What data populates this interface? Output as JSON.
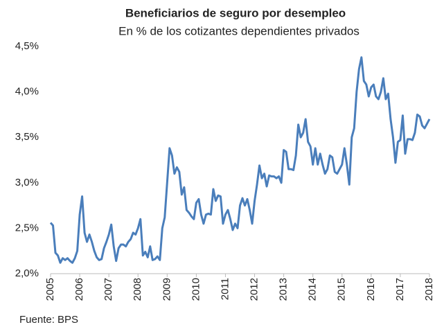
{
  "chart_data": {
    "type": "line",
    "title": "Beneficiarios de seguro por desempleo",
    "subtitle": "En % de los cotizantes dependientes privados",
    "source": "Fuente: BPS",
    "categories": [
      "2005",
      null,
      null,
      null,
      null,
      null,
      null,
      null,
      null,
      null,
      null,
      null,
      "2006",
      null,
      null,
      null,
      null,
      null,
      null,
      null,
      null,
      null,
      null,
      null,
      "2007",
      null,
      null,
      null,
      null,
      null,
      null,
      null,
      null,
      null,
      null,
      null,
      "2008",
      null,
      null,
      null,
      null,
      null,
      null,
      null,
      null,
      null,
      null,
      null,
      "2009",
      null,
      null,
      null,
      null,
      null,
      null,
      null,
      null,
      null,
      null,
      null,
      "2010",
      null,
      null,
      null,
      null,
      null,
      null,
      null,
      null,
      null,
      null,
      null,
      "2011",
      null,
      null,
      null,
      null,
      null,
      null,
      null,
      null,
      null,
      null,
      null,
      "2012",
      null,
      null,
      null,
      null,
      null,
      null,
      null,
      null,
      null,
      null,
      null,
      "2013",
      null,
      null,
      null,
      null,
      null,
      null,
      null,
      null,
      null,
      null,
      null,
      "2014",
      null,
      null,
      null,
      null,
      null,
      null,
      null,
      null,
      null,
      null,
      null,
      "2015",
      null,
      null,
      null,
      null,
      null,
      null,
      null,
      null,
      null,
      null,
      null,
      "2016",
      null,
      null,
      null,
      null,
      null,
      null,
      null,
      null,
      null,
      null,
      null,
      "2017",
      null,
      null,
      null,
      null,
      null,
      null,
      null,
      null,
      null,
      null,
      null,
      "2018"
    ],
    "values": [
      2.56,
      2.53,
      2.23,
      2.2,
      2.12,
      2.17,
      2.15,
      2.17,
      2.14,
      2.12,
      2.17,
      2.25,
      2.65,
      2.85,
      2.45,
      2.35,
      2.43,
      2.35,
      2.25,
      2.18,
      2.15,
      2.16,
      2.28,
      2.35,
      2.43,
      2.54,
      2.3,
      2.14,
      2.28,
      2.32,
      2.32,
      2.3,
      2.35,
      2.38,
      2.45,
      2.43,
      2.5,
      2.6,
      2.2,
      2.24,
      2.18,
      2.3,
      2.15,
      2.16,
      2.19,
      2.15,
      2.5,
      2.62,
      3.0,
      3.38,
      3.3,
      3.1,
      3.17,
      3.12,
      2.87,
      2.95,
      2.7,
      2.67,
      2.63,
      2.6,
      2.78,
      2.82,
      2.65,
      2.55,
      2.65,
      2.66,
      2.65,
      2.93,
      2.8,
      2.86,
      2.85,
      2.55,
      2.65,
      2.7,
      2.6,
      2.48,
      2.55,
      2.5,
      2.75,
      2.83,
      2.75,
      2.82,
      2.7,
      2.55,
      2.8,
      2.98,
      3.19,
      3.05,
      3.1,
      2.96,
      3.08,
      3.07,
      3.07,
      3.05,
      3.07,
      3.0,
      3.36,
      3.34,
      3.15,
      3.15,
      3.14,
      3.3,
      3.64,
      3.5,
      3.55,
      3.7,
      3.45,
      3.4,
      3.2,
      3.38,
      3.2,
      3.32,
      3.2,
      3.1,
      3.15,
      3.3,
      3.28,
      3.12,
      3.1,
      3.15,
      3.2,
      3.38,
      3.2,
      2.98,
      3.5,
      3.6,
      4.0,
      4.25,
      4.38,
      4.12,
      4.08,
      3.95,
      4.05,
      4.08,
      3.95,
      3.92,
      4.0,
      4.15,
      3.92,
      3.98,
      3.7,
      3.5,
      3.22,
      3.45,
      3.47,
      3.74,
      3.32,
      3.48,
      3.48,
      3.47,
      3.55,
      3.75,
      3.73,
      3.63,
      3.6,
      3.65,
      3.7
    ],
    "color": "#4a7ebb",
    "ylim": [
      2.0,
      4.5
    ],
    "yticks": [
      {
        "value": 2.0,
        "label": "2,0%"
      },
      {
        "value": 2.5,
        "label": "2,5%"
      },
      {
        "value": 3.0,
        "label": "3,0%"
      },
      {
        "value": 3.5,
        "label": "3,5%"
      },
      {
        "value": 4.0,
        "label": "4,0%"
      },
      {
        "value": 4.5,
        "label": "4,5%"
      }
    ],
    "grid": false
  }
}
